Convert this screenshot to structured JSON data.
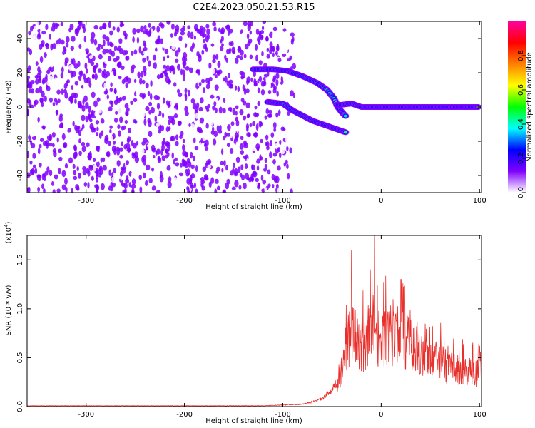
{
  "title": "C2E4.2023.050.21.53.R15",
  "chart_data": [
    {
      "type": "heatmap",
      "xlabel": "Height of straight line (km)",
      "ylabel": "Frequency (Hz)",
      "xlim": [
        -360,
        102
      ],
      "ylim": [
        -50,
        50
      ],
      "xticks": [
        -300,
        -200,
        -100,
        0,
        100
      ],
      "yticks": [
        -40,
        -20,
        0,
        20,
        40
      ],
      "noise_region_x": [
        -360,
        -95
      ],
      "features": [
        {
          "name": "upper_branch",
          "points": [
            [
              -130,
              22
            ],
            [
              -110,
              22
            ],
            [
              -95,
              21
            ],
            [
              -80,
              18
            ],
            [
              -65,
              14
            ],
            [
              -55,
              10
            ],
            [
              -48,
              5
            ],
            [
              -44,
              0
            ],
            [
              -40,
              -3
            ],
            [
              -35,
              -6
            ]
          ]
        },
        {
          "name": "lower_branch",
          "points": [
            [
              -115,
              3
            ],
            [
              -100,
              2
            ],
            [
              -90,
              -2
            ],
            [
              -80,
              -5
            ],
            [
              -70,
              -8
            ],
            [
              -60,
              -10
            ],
            [
              -50,
              -12
            ],
            [
              -40,
              -14
            ],
            [
              -35,
              -15
            ]
          ]
        },
        {
          "name": "carrier",
          "points": [
            [
              -45,
              1
            ],
            [
              -30,
              2
            ],
            [
              -20,
              0
            ],
            [
              0,
              0
            ],
            [
              50,
              0
            ],
            [
              100,
              0
            ]
          ]
        }
      ],
      "colorbar": {
        "label": "Normalized spectral amplitude",
        "range": [
          0,
          1
        ],
        "ticks": [
          "0.0",
          "0.2",
          "0.4",
          "0.6",
          "0.8"
        ],
        "tick_values": [
          0.0,
          0.2,
          0.4,
          0.6,
          0.8
        ],
        "colors": [
          "#ffffff",
          "#8000ff",
          "#0000ff",
          "#00ffff",
          "#00ff00",
          "#ffff00",
          "#ff8000",
          "#ff0000",
          "#ff00a0"
        ]
      }
    },
    {
      "type": "line",
      "xlabel": "Height of straight line (km)",
      "ylabel": "SNR (10 * v/v)",
      "scale_label": "(x10",
      "scale_exp": "4",
      "scale_close": ")",
      "xlim": [
        -360,
        102
      ],
      "ylim": [
        0,
        1.75
      ],
      "xticks": [
        -300,
        -200,
        -100,
        0,
        100
      ],
      "yticks": [
        "0.0",
        "0.5",
        "1.0",
        "1.5"
      ],
      "ytick_values": [
        0.0,
        0.5,
        1.0,
        1.5
      ],
      "color": "#e8302c",
      "x": [
        -360,
        -300,
        -200,
        -120,
        -100,
        -80,
        -70,
        -60,
        -50,
        -45,
        -40,
        -35,
        -30,
        -25,
        -20,
        -15,
        -10,
        -5,
        0,
        5,
        10,
        20,
        30,
        40,
        50,
        60,
        70,
        80,
        90,
        100
      ],
      "y": [
        0.01,
        0.01,
        0.01,
        0.01,
        0.02,
        0.03,
        0.06,
        0.1,
        0.2,
        0.3,
        0.55,
        0.95,
        1.05,
        0.95,
        0.9,
        0.85,
        1.1,
        1.05,
        0.95,
        1.0,
        0.95,
        1.0,
        0.9,
        0.8,
        0.7,
        0.65,
        0.55,
        0.55,
        0.5,
        0.5
      ],
      "peaks": [
        {
          "x": -7,
          "y": 1.75
        },
        {
          "x": -30,
          "y": 1.6
        },
        {
          "x": 20,
          "y": 1.3
        }
      ]
    }
  ]
}
